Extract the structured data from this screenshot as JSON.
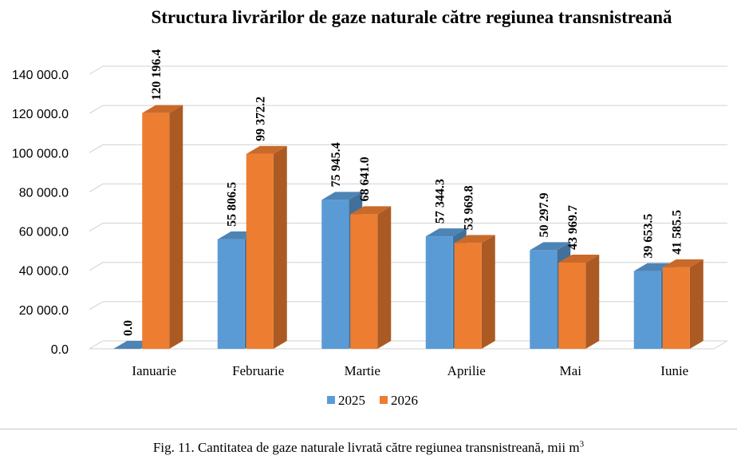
{
  "chart_data": {
    "type": "bar",
    "title": "Structura livrărilor de gaze naturale către regiunea transnistreană",
    "categories": [
      "Ianuarie",
      "Februarie",
      "Martie",
      "Aprilie",
      "Mai",
      "Iunie"
    ],
    "series": [
      {
        "name": "2025",
        "values": [
          0.0,
          55806.5,
          75945.4,
          57344.3,
          50297.9,
          39653.5
        ],
        "labels": [
          "0.0",
          "55 806.5",
          "75 945.4",
          "57 344.3",
          "50 297.9",
          "39 653.5"
        ],
        "color": "#5b9bd5"
      },
      {
        "name": "2026",
        "values": [
          120196.4,
          99372.2,
          68641.0,
          53969.8,
          43969.7,
          41585.5
        ],
        "labels": [
          "120 196.4",
          "99 372.2",
          "68 641.0",
          "53 969.8",
          "43 969.7",
          "41 585.5"
        ],
        "color": "#ed7d31"
      }
    ],
    "yticks": [
      "0.0",
      "20 000.0",
      "40 000.0",
      "60 000.0",
      "80 000.0",
      "100 000.0",
      "120 000.0",
      "140 000.0"
    ],
    "ylim": [
      0,
      140000
    ],
    "grid": true,
    "legend": "bottom",
    "style": "3d-column"
  },
  "caption": {
    "text": "Fig. 11. Cantitatea de gaze naturale livrată către regiunea transnistreană, mii m",
    "superscript": "3"
  }
}
